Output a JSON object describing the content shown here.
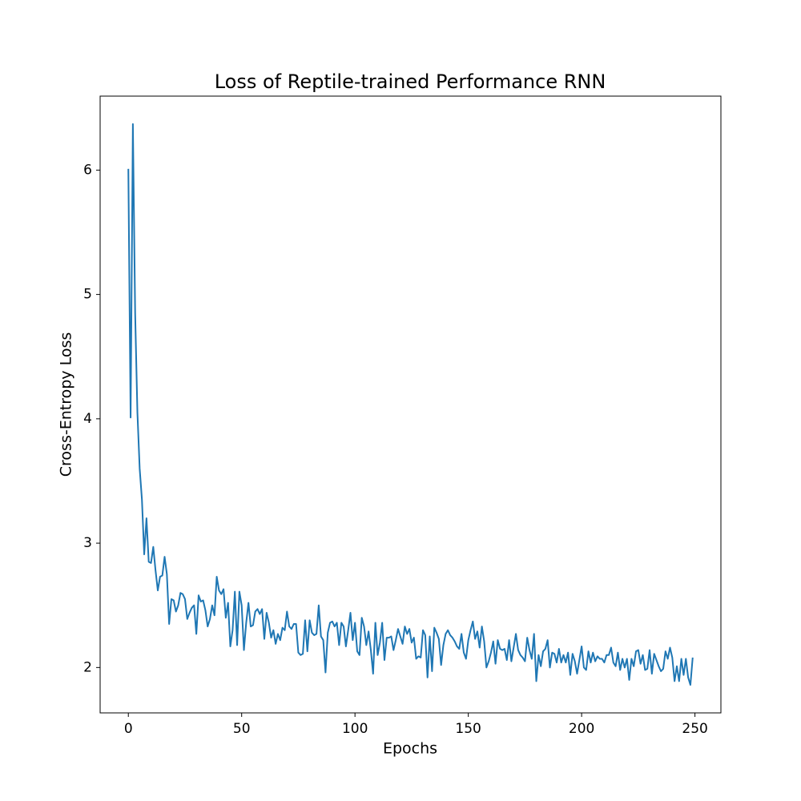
{
  "chart_data": {
    "type": "line",
    "title": "Loss of Reptile-trained Performance RNN",
    "x_label": "Epochs",
    "y_label": "Cross-Entropy Loss",
    "color": "#1f77b4",
    "x": [
      0,
      1,
      2,
      3,
      4,
      5,
      6,
      7,
      8,
      9,
      10,
      11,
      12,
      13,
      14,
      15,
      16,
      17,
      18,
      19,
      20,
      21,
      22,
      23,
      24,
      25,
      26,
      27,
      28,
      29,
      30,
      31,
      32,
      33,
      34,
      35,
      36,
      37,
      38,
      39,
      40,
      41,
      42,
      43,
      44,
      45,
      46,
      47,
      48,
      49,
      50,
      51,
      52,
      53,
      54,
      55,
      56,
      57,
      58,
      59,
      60,
      61,
      62,
      63,
      64,
      65,
      66,
      67,
      68,
      69,
      70,
      71,
      72,
      73,
      74,
      75,
      76,
      77,
      78,
      79,
      80,
      81,
      82,
      83,
      84,
      85,
      86,
      87,
      88,
      89,
      90,
      91,
      92,
      93,
      94,
      95,
      96,
      97,
      98,
      99,
      100,
      101,
      102,
      103,
      104,
      105,
      106,
      107,
      108,
      109,
      110,
      111,
      112,
      113,
      114,
      115,
      116,
      117,
      118,
      119,
      120,
      121,
      122,
      123,
      124,
      125,
      126,
      127,
      128,
      129,
      130,
      131,
      132,
      133,
      134,
      135,
      136,
      137,
      138,
      139,
      140,
      141,
      142,
      143,
      144,
      145,
      146,
      147,
      148,
      149,
      150,
      151,
      152,
      153,
      154,
      155,
      156,
      157,
      158,
      159,
      160,
      161,
      162,
      163,
      164,
      165,
      166,
      167,
      168,
      169,
      170,
      171,
      172,
      173,
      174,
      175,
      176,
      177,
      178,
      179,
      180,
      181,
      182,
      183,
      184,
      185,
      186,
      187,
      188,
      189,
      190,
      191,
      192,
      193,
      194,
      195,
      196,
      197,
      198,
      199,
      200,
      201,
      202,
      203,
      204,
      205,
      206,
      207,
      208,
      209,
      210,
      211,
      212,
      213,
      214,
      215,
      216,
      217,
      218,
      219,
      220,
      221,
      222,
      223,
      224,
      225,
      226,
      227,
      228,
      229,
      230,
      231,
      232,
      233,
      234,
      235,
      236,
      237,
      238,
      239,
      240,
      241,
      242,
      243,
      244,
      245,
      246,
      247,
      248,
      249
    ],
    "values": [
      6.01,
      4.01,
      6.37,
      4.85,
      4.05,
      3.6,
      3.35,
      2.91,
      3.2,
      2.85,
      2.84,
      2.97,
      2.78,
      2.62,
      2.73,
      2.74,
      2.89,
      2.75,
      2.35,
      2.55,
      2.54,
      2.45,
      2.5,
      2.6,
      2.59,
      2.55,
      2.39,
      2.44,
      2.48,
      2.5,
      2.27,
      2.58,
      2.53,
      2.54,
      2.46,
      2.33,
      2.39,
      2.5,
      2.42,
      2.73,
      2.62,
      2.59,
      2.63,
      2.4,
      2.52,
      2.17,
      2.3,
      2.61,
      2.18,
      2.61,
      2.5,
      2.14,
      2.36,
      2.52,
      2.33,
      2.34,
      2.45,
      2.47,
      2.43,
      2.47,
      2.23,
      2.44,
      2.36,
      2.24,
      2.3,
      2.19,
      2.27,
      2.22,
      2.32,
      2.3,
      2.45,
      2.33,
      2.31,
      2.35,
      2.35,
      2.12,
      2.1,
      2.11,
      2.38,
      2.13,
      2.38,
      2.28,
      2.26,
      2.27,
      2.5,
      2.25,
      2.22,
      1.96,
      2.28,
      2.36,
      2.37,
      2.33,
      2.36,
      2.18,
      2.36,
      2.33,
      2.17,
      2.3,
      2.44,
      2.22,
      2.36,
      2.13,
      2.1,
      2.4,
      2.33,
      2.18,
      2.29,
      2.14,
      1.95,
      2.36,
      2.1,
      2.2,
      2.36,
      2.06,
      2.24,
      2.24,
      2.25,
      2.14,
      2.22,
      2.31,
      2.25,
      2.19,
      2.33,
      2.27,
      2.31,
      2.2,
      2.24,
      2.07,
      2.09,
      2.08,
      2.3,
      2.26,
      1.92,
      2.25,
      1.97,
      2.32,
      2.28,
      2.23,
      2.02,
      2.18,
      2.27,
      2.3,
      2.26,
      2.24,
      2.21,
      2.17,
      2.15,
      2.27,
      2.12,
      2.07,
      2.22,
      2.3,
      2.37,
      2.23,
      2.29,
      2.16,
      2.33,
      2.21,
      2.0,
      2.05,
      2.12,
      2.21,
      2.03,
      2.22,
      2.15,
      2.14,
      2.15,
      2.06,
      2.22,
      2.05,
      2.16,
      2.27,
      2.14,
      2.1,
      2.08,
      2.05,
      2.24,
      2.14,
      2.07,
      2.27,
      1.89,
      2.1,
      2.01,
      2.13,
      2.15,
      2.22,
      2.0,
      2.12,
      2.11,
      2.04,
      2.15,
      2.04,
      2.1,
      2.04,
      2.12,
      1.94,
      2.11,
      2.05,
      1.95,
      2.06,
      2.17,
      2.0,
      1.98,
      2.13,
      2.04,
      2.12,
      2.05,
      2.09,
      2.07,
      2.07,
      2.04,
      2.1,
      2.1,
      2.16,
      2.04,
      2.01,
      2.12,
      1.98,
      2.07,
      2.0,
      2.07,
      1.9,
      2.07,
      2.01,
      2.13,
      2.14,
      2.03,
      2.1,
      1.98,
      1.99,
      2.14,
      1.95,
      2.11,
      2.06,
      2.01,
      1.97,
      1.99,
      2.13,
      2.07,
      2.16,
      2.08,
      1.89,
      2.01,
      1.89,
      2.07,
      1.94,
      2.07,
      1.92,
      1.86,
      2.08
    ],
    "xlim": [
      -12.45,
      261.45
    ],
    "ylim": [
      1.635,
      6.595
    ],
    "xticks": [
      0,
      50,
      100,
      150,
      200,
      250
    ],
    "yticks": [
      2,
      3,
      4,
      5,
      6
    ]
  }
}
